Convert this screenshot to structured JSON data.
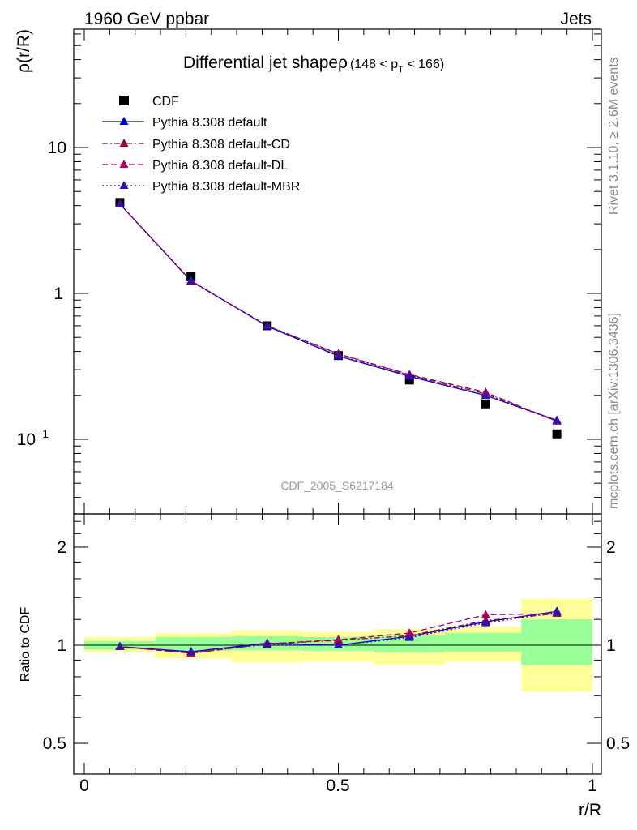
{
  "header": {
    "energy": "1960 GeV ppbar",
    "category": "Jets"
  },
  "side_text": {
    "rivet": "Rivet 3.1.10, ≥ 2.6M events",
    "mcplots": "mcplots.cern.ch [arXiv:1306.3436]"
  },
  "watermark": "CDF_2005_S6217184",
  "chart_data": [
    {
      "panel": "main",
      "type": "scatter",
      "title": "Differential jet shapeρ",
      "title_range": "(148 < p",
      "title_range_sub": "T",
      "title_range_tail": " < 166)",
      "ylabel": "ρ(r/R)",
      "yscale": "log",
      "ylim": [
        0.03,
        55
      ],
      "xlim": [
        -0.02,
        1.0
      ],
      "yticks": [
        0.1,
        1,
        10
      ],
      "ytick_labels": {
        "base": "10",
        "exp": "−1",
        "one": "1",
        "ten": "10"
      },
      "legend_position": "top-left",
      "x": [
        0.07,
        0.21,
        0.36,
        0.5,
        0.64,
        0.79,
        0.93
      ],
      "series": [
        {
          "name": "CDF",
          "marker": "square",
          "color": "#000000",
          "values": [
            4.2,
            1.3,
            0.6,
            0.375,
            0.255,
            0.175,
            0.109
          ]
        },
        {
          "name": "Pythia 8.308 default",
          "marker": "triangle",
          "color": "#0000cc",
          "dash": "solid",
          "values": [
            4.1,
            1.22,
            0.595,
            0.372,
            0.27,
            0.2,
            0.135
          ]
        },
        {
          "name": "Pythia 8.308 default-CD",
          "marker": "triangle",
          "color": "#990033",
          "dash": "dashdot",
          "values": [
            4.1,
            1.21,
            0.6,
            0.385,
            0.275,
            0.205,
            0.133
          ]
        },
        {
          "name": "Pythia 8.308 default-DL",
          "marker": "triangle",
          "color": "#aa0066",
          "dash": "dashed",
          "values": [
            4.1,
            1.22,
            0.6,
            0.385,
            0.278,
            0.21,
            0.133
          ]
        },
        {
          "name": "Pythia 8.308 default-MBR",
          "marker": "triangle",
          "color": "#3311aa",
          "dash": "dotted",
          "values": [
            4.1,
            1.22,
            0.6,
            0.375,
            0.272,
            0.2,
            0.134
          ]
        }
      ]
    },
    {
      "panel": "ratio",
      "type": "line",
      "ylabel": "Ratio to CDF",
      "xlabel": "r/R",
      "yscale": "log",
      "ylim": [
        0.41,
        2.4
      ],
      "xlim": [
        -0.02,
        1.0
      ],
      "yticks": [
        0.5,
        1,
        2
      ],
      "ytick_labels": [
        "0.5",
        "1",
        "2"
      ],
      "xticks": [
        0,
        0.5,
        1
      ],
      "xtick_labels": [
        "0",
        "0.5",
        "1"
      ],
      "x": [
        0.07,
        0.21,
        0.36,
        0.5,
        0.64,
        0.79,
        0.93
      ],
      "bins": [
        [
          0.0,
          0.14
        ],
        [
          0.14,
          0.29
        ],
        [
          0.29,
          0.43
        ],
        [
          0.43,
          0.57
        ],
        [
          0.57,
          0.71
        ],
        [
          0.71,
          0.86
        ],
        [
          0.86,
          1.0
        ]
      ],
      "band_stat": [
        [
          0.97,
          1.03
        ],
        [
          0.96,
          1.06
        ],
        [
          0.965,
          1.065
        ],
        [
          0.96,
          1.06
        ],
        [
          0.95,
          1.07
        ],
        [
          0.955,
          1.09
        ],
        [
          0.87,
          1.2
        ]
      ],
      "band_total": [
        [
          0.95,
          1.06
        ],
        [
          0.91,
          1.09
        ],
        [
          0.885,
          1.11
        ],
        [
          0.89,
          1.1
        ],
        [
          0.87,
          1.12
        ],
        [
          0.89,
          1.14
        ],
        [
          0.72,
          1.39
        ]
      ],
      "band_colors": {
        "stat": "#99ff99",
        "total": "#ffff99"
      },
      "series": [
        {
          "name": "Pythia 8.308 default",
          "color": "#0000cc",
          "dash": "solid",
          "values": [
            0.99,
            0.955,
            1.015,
            1.0,
            1.065,
            1.18,
            1.27
          ]
        },
        {
          "name": "Pythia 8.308 default-CD",
          "color": "#990033",
          "dash": "dashdot",
          "values": [
            0.99,
            0.945,
            1.01,
            1.035,
            1.07,
            1.19,
            1.25
          ]
        },
        {
          "name": "Pythia 8.308 default-DL",
          "color": "#aa0066",
          "dash": "dashed",
          "values": [
            0.99,
            0.945,
            1.01,
            1.04,
            1.09,
            1.24,
            1.25
          ]
        },
        {
          "name": "Pythia 8.308 default-MBR",
          "color": "#3311aa",
          "dash": "dotted",
          "values": [
            0.99,
            0.955,
            1.005,
            1.0,
            1.055,
            1.17,
            1.26
          ]
        }
      ]
    }
  ]
}
